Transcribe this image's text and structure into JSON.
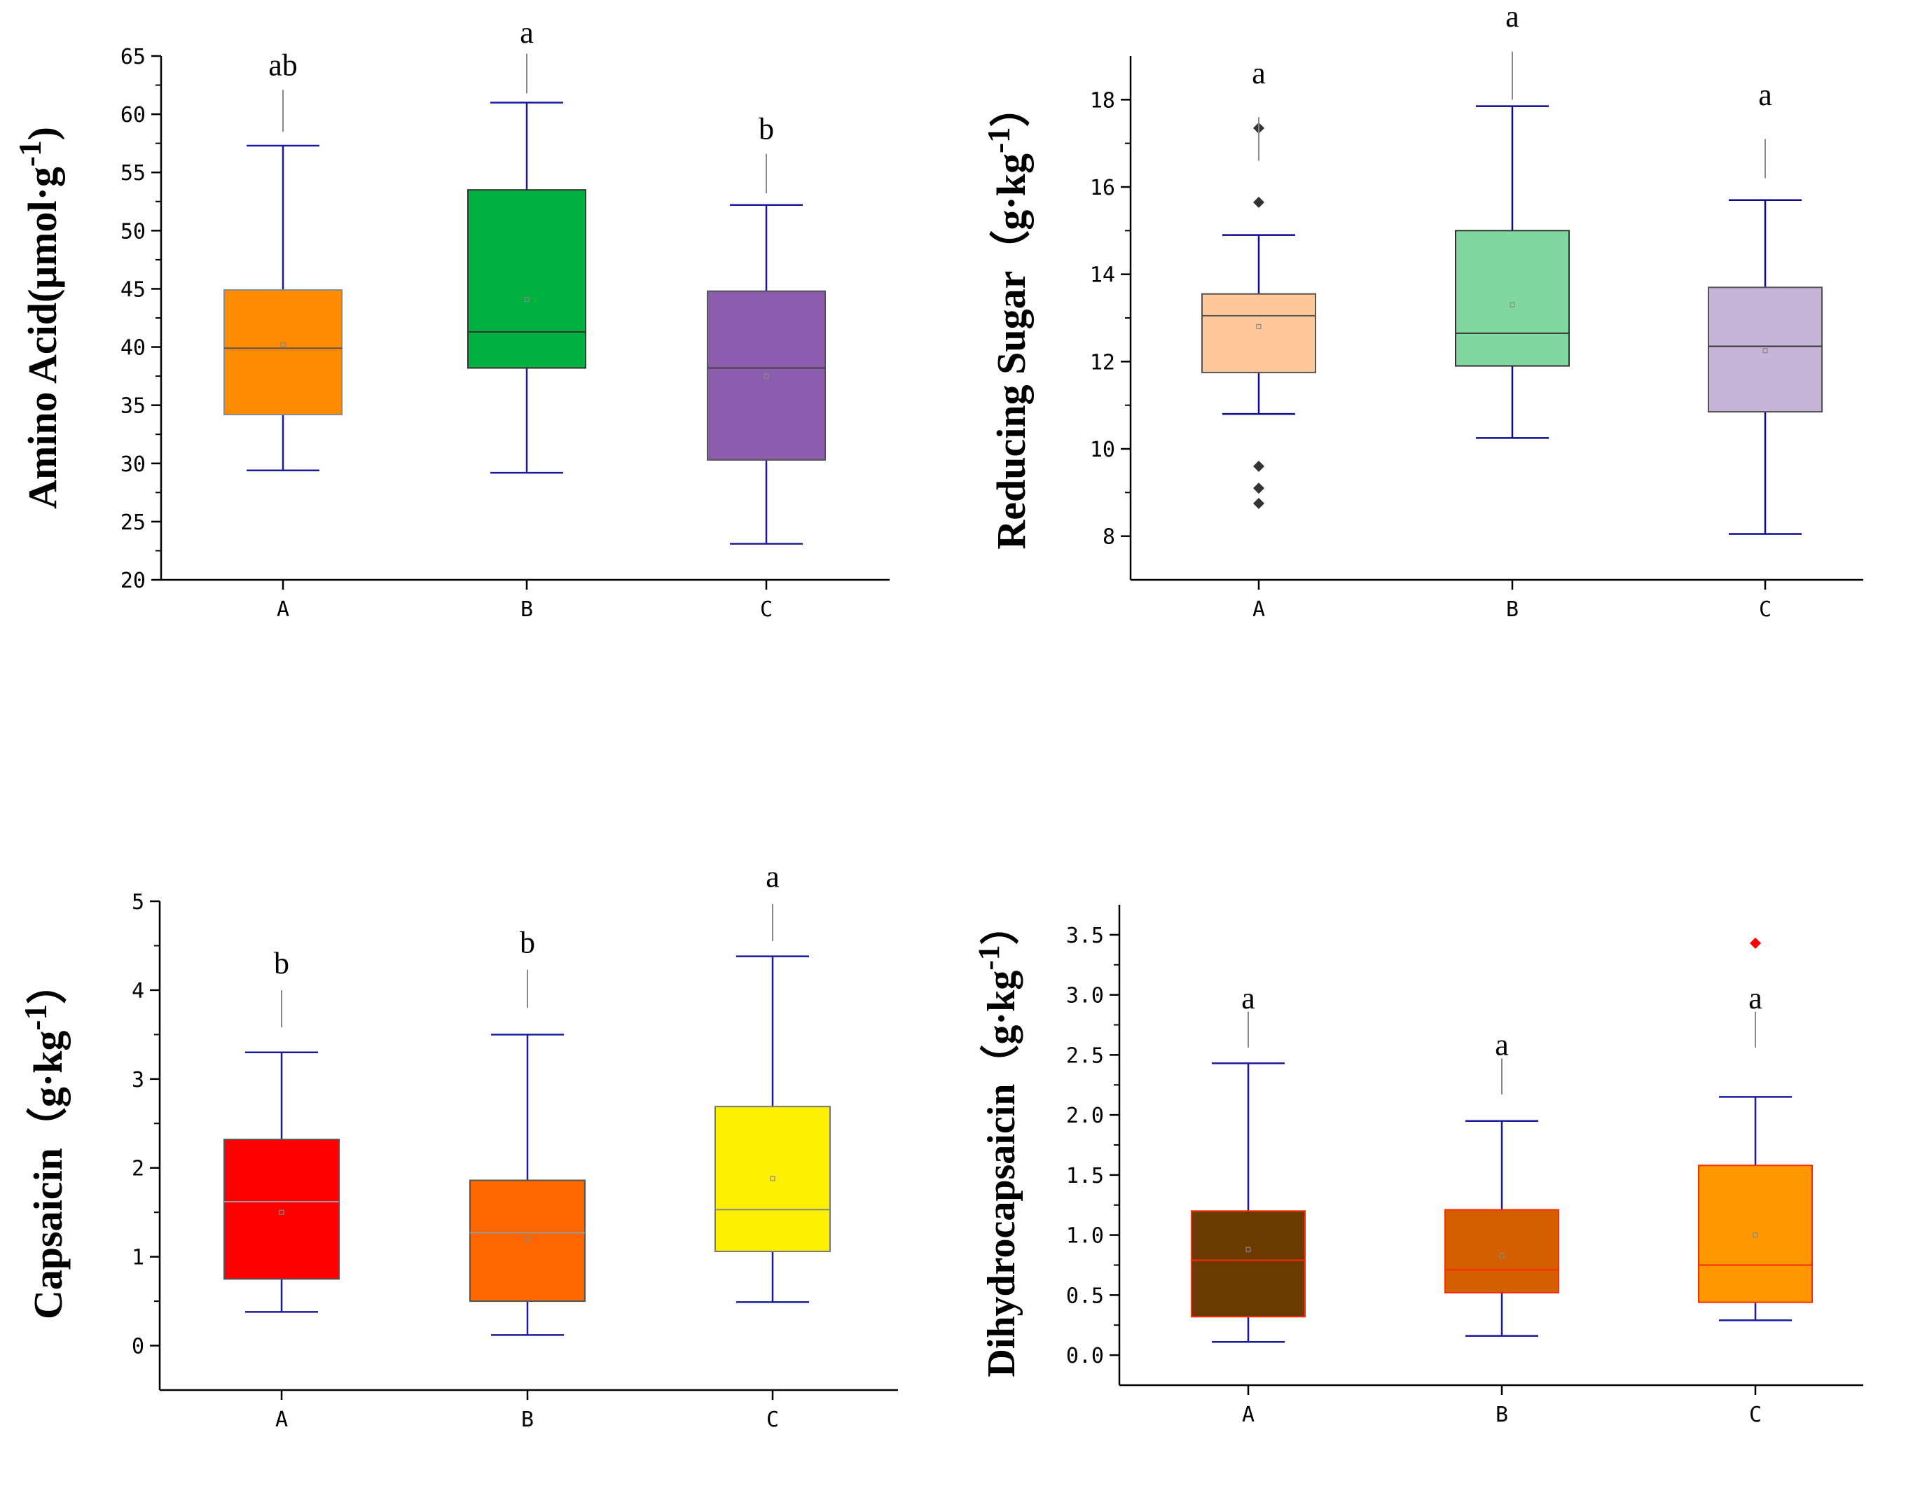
{
  "chart_data": [
    {
      "id": "amino",
      "type": "box",
      "title": "",
      "ylabel": "Amino Acid(μmol·g",
      "ylabel_sup": "-1",
      "ylabel_close": ")",
      "ylim": [
        20,
        65
      ],
      "yticks": [
        "20",
        "25",
        "30",
        "35",
        "40",
        "45",
        "50",
        "55",
        "60",
        "65"
      ],
      "ytick_values": [
        20,
        25,
        30,
        35,
        40,
        45,
        50,
        55,
        60,
        65
      ],
      "minor_ticks": true,
      "categories": [
        "A",
        "B",
        "C"
      ],
      "boxes": [
        {
          "cat": "A",
          "whisker_low": 29.4,
          "q1": 34.2,
          "median": 39.9,
          "q3": 44.9,
          "whisker_high": 57.3,
          "mean": 40.2,
          "fill": "#FF8C00",
          "stroke": "#8a8a8a",
          "median_color": "#555555",
          "whisker_color": "#1a1aa0",
          "outliers": [],
          "outlier_color": "#333333",
          "sig": "ab",
          "sig_line": [
            58.5,
            62.1
          ],
          "sig_text_y": 64.2
        },
        {
          "cat": "B",
          "whisker_low": 29.2,
          "q1": 38.2,
          "median": 41.3,
          "q3": 53.5,
          "whisker_high": 61.0,
          "mean": 44.1,
          "fill": "#00B140",
          "stroke": "#333333",
          "median_color": "#333333",
          "whisker_color": "#1a1aa0",
          "outliers": [],
          "outlier_color": "#333333",
          "sig": "a",
          "sig_line": [
            61.8,
            65.2
          ],
          "sig_text_y": 67.0
        },
        {
          "cat": "C",
          "whisker_low": 23.1,
          "q1": 30.3,
          "median": 38.2,
          "q3": 44.8,
          "whisker_high": 52.2,
          "mean": 37.5,
          "fill": "#8C5DAF",
          "stroke": "#555555",
          "median_color": "#444444",
          "whisker_color": "#1a1aa0",
          "outliers": [],
          "outlier_color": "#333333",
          "sig": "b",
          "sig_line": [
            53.2,
            56.6
          ],
          "sig_text_y": 58.7
        }
      ]
    },
    {
      "id": "sugar",
      "type": "box",
      "title": "",
      "ylabel": "Reducing Sugar（g·kg",
      "ylabel_sup": "-1",
      "ylabel_close": "）",
      "ylim": [
        7,
        19
      ],
      "yticks": [
        "8",
        "10",
        "12",
        "14",
        "16",
        "18"
      ],
      "ytick_values": [
        8,
        10,
        12,
        14,
        16,
        18
      ],
      "minor_ticks": true,
      "categories": [
        "A",
        "B",
        "C"
      ],
      "boxes": [
        {
          "cat": "A",
          "whisker_low": 10.8,
          "q1": 11.75,
          "median": 13.05,
          "q3": 13.55,
          "whisker_high": 14.9,
          "mean": 12.8,
          "fill": "#FFC89A",
          "stroke": "#555555",
          "median_color": "#555555",
          "whisker_color": "#0a0a90",
          "outliers": [
            17.35,
            15.65,
            9.6,
            9.1,
            8.75
          ],
          "outlier_color": "#333333",
          "sig": "a",
          "sig_line": [
            16.6,
            17.6
          ],
          "sig_text_y": 18.6
        },
        {
          "cat": "B",
          "whisker_low": 10.25,
          "q1": 11.9,
          "median": 12.65,
          "q3": 15.0,
          "whisker_high": 17.85,
          "mean": 13.3,
          "fill": "#80D89E",
          "stroke": "#333333",
          "median_color": "#333333",
          "whisker_color": "#0a0a90",
          "outliers": [],
          "outlier_color": "#333333",
          "sig": "a",
          "sig_line": [
            18.0,
            19.1
          ],
          "sig_text_y": 19.9
        },
        {
          "cat": "C",
          "whisker_low": 8.05,
          "q1": 10.85,
          "median": 12.35,
          "q3": 13.7,
          "whisker_high": 15.7,
          "mean": 12.25,
          "fill": "#C7B4D9",
          "stroke": "#555555",
          "median_color": "#333333",
          "whisker_color": "#0a0a90",
          "outliers": [],
          "outlier_color": "#333333",
          "sig": "a",
          "sig_line": [
            16.2,
            17.1
          ],
          "sig_text_y": 18.1
        }
      ]
    },
    {
      "id": "capsaicin",
      "type": "box",
      "title": "",
      "ylabel": "Capsaicin（g·kg",
      "ylabel_sup": "-1",
      "ylabel_close": "）",
      "ylim": [
        -0.5,
        5
      ],
      "yticks": [
        "0",
        "1",
        "2",
        "3",
        "4",
        "5"
      ],
      "ytick_values": [
        0,
        1,
        2,
        3,
        4,
        5
      ],
      "minor_ticks": true,
      "categories": [
        "A",
        "B",
        "C"
      ],
      "boxes": [
        {
          "cat": "A",
          "whisker_low": 0.38,
          "q1": 0.75,
          "median": 1.62,
          "q3": 2.32,
          "whisker_high": 3.3,
          "mean": 1.5,
          "fill": "#FF0000",
          "stroke": "#555555",
          "median_color": "#999999",
          "whisker_color": "#1a1aa0",
          "outliers": [],
          "outlier_color": "#333333",
          "sig": "b",
          "sig_line": [
            3.58,
            4.0
          ],
          "sig_text_y": 4.3
        },
        {
          "cat": "B",
          "whisker_low": 0.12,
          "q1": 0.5,
          "median": 1.27,
          "q3": 1.86,
          "whisker_high": 3.5,
          "mean": 1.2,
          "fill": "#FF6600",
          "stroke": "#555555",
          "median_color": "#999999",
          "whisker_color": "#1a1aa0",
          "outliers": [],
          "outlier_color": "#333333",
          "sig": "b",
          "sig_line": [
            3.8,
            4.23
          ],
          "sig_text_y": 4.53
        },
        {
          "cat": "C",
          "whisker_low": 0.49,
          "q1": 1.06,
          "median": 1.53,
          "q3": 2.69,
          "whisker_high": 4.38,
          "mean": 1.88,
          "fill": "#FFEF00",
          "stroke": "#777777",
          "median_color": "#888888",
          "whisker_color": "#1a1aa0",
          "outliers": [],
          "outlier_color": "#333333",
          "sig": "a",
          "sig_line": [
            4.55,
            4.97
          ],
          "sig_text_y": 5.27
        }
      ]
    },
    {
      "id": "dihydro",
      "type": "box",
      "title": "",
      "ylabel": "Dihydrocapsaicin（g·kg",
      "ylabel_sup": "-1",
      "ylabel_close": "）",
      "ylim": [
        -0.25,
        3.75
      ],
      "yticks": [
        "0.0",
        "0.5",
        "1.0",
        "1.5",
        "2.0",
        "2.5",
        "3.0",
        "3.5"
      ],
      "ytick_values": [
        0,
        0.5,
        1.0,
        1.5,
        2.0,
        2.5,
        3.0,
        3.5
      ],
      "minor_ticks": true,
      "categories": [
        "A",
        "B",
        "C"
      ],
      "boxes": [
        {
          "cat": "A",
          "whisker_low": 0.11,
          "q1": 0.32,
          "median": 0.79,
          "q3": 1.2,
          "whisker_high": 2.43,
          "mean": 0.88,
          "fill": "#6B3A00",
          "stroke": "#FF2A00",
          "median_color": "#FF2A00",
          "whisker_color": "#1a1aa0",
          "outliers": [],
          "outlier_color": "#FF0000",
          "sig": "a",
          "sig_line": [
            2.56,
            2.86
          ],
          "sig_text_y": 2.97
        },
        {
          "cat": "B",
          "whisker_low": 0.16,
          "q1": 0.52,
          "median": 0.71,
          "q3": 1.21,
          "whisker_high": 1.95,
          "mean": 0.83,
          "fill": "#D45F00",
          "stroke": "#FF2A00",
          "median_color": "#FF2A00",
          "whisker_color": "#1a1aa0",
          "outliers": [],
          "outlier_color": "#FF0000",
          "sig": "a",
          "sig_line": [
            2.17,
            2.47
          ],
          "sig_text_y": 2.58
        },
        {
          "cat": "C",
          "whisker_low": 0.29,
          "q1": 0.44,
          "median": 0.75,
          "q3": 1.58,
          "whisker_high": 2.15,
          "mean": 1.0,
          "fill": "#FF9800",
          "stroke": "#FF2A00",
          "median_color": "#FF2A00",
          "whisker_color": "#1a1aa0",
          "outliers": [
            3.43
          ],
          "outlier_color": "#FF0000",
          "sig": "a",
          "sig_line": [
            2.56,
            2.86
          ],
          "sig_text_y": 2.97
        }
      ]
    }
  ]
}
